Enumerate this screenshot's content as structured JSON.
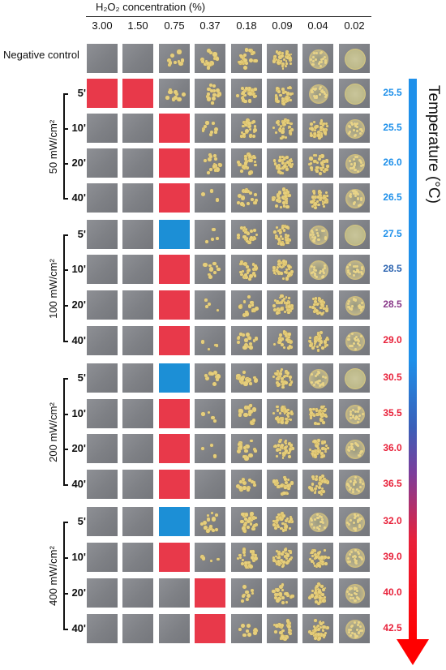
{
  "header": {
    "title": "H₂O₂ concentration (%)",
    "concentrations": [
      "3.00",
      "1.50",
      "0.75",
      "0.37",
      "0.18",
      "0.09",
      "0.04",
      "0.02"
    ]
  },
  "negative_control": {
    "label": "Negative control",
    "growth": [
      0,
      0,
      2,
      3,
      4,
      5,
      6,
      7
    ]
  },
  "axis": {
    "title": "Temperature (°C)"
  },
  "groups": [
    {
      "label": "50 mW/cm²",
      "rows": [
        {
          "time": "5'",
          "temp": "25.5",
          "temp_color": "#1e90ea",
          "growth": [
            0,
            0,
            2,
            3,
            4,
            5,
            6,
            7
          ],
          "overlay": {
            "red": [
              0,
              1
            ],
            "blue": []
          }
        },
        {
          "time": "10'",
          "temp": "25.5",
          "temp_color": "#1e90ea",
          "growth": [
            0,
            0,
            0,
            2,
            4,
            5,
            5,
            6
          ],
          "overlay": {
            "red": [
              2
            ],
            "blue": []
          }
        },
        {
          "time": "20'",
          "temp": "26.0",
          "temp_color": "#1e90ea",
          "growth": [
            0,
            0,
            0,
            3,
            4,
            5,
            5,
            6
          ],
          "overlay": {
            "red": [
              2
            ],
            "blue": []
          }
        },
        {
          "time": "40'",
          "temp": "26.5",
          "temp_color": "#1e90ea",
          "growth": [
            0,
            0,
            0,
            1,
            3,
            4,
            5,
            6
          ],
          "overlay": {
            "red": [
              2
            ],
            "blue": []
          }
        }
      ]
    },
    {
      "label": "100 mW/cm²",
      "rows": [
        {
          "time": "5'",
          "temp": "27.5",
          "temp_color": "#1e90ea",
          "growth": [
            0,
            0,
            0,
            1,
            4,
            5,
            6,
            7
          ],
          "overlay": {
            "red": [],
            "blue": [
              2
            ]
          }
        },
        {
          "time": "10'",
          "temp": "28.5",
          "temp_color": "#2b63b0",
          "growth": [
            0,
            0,
            0,
            2,
            4,
            5,
            6,
            6
          ],
          "overlay": {
            "red": [
              2
            ],
            "blue": []
          }
        },
        {
          "time": "20'",
          "temp": "28.5",
          "temp_color": "#8a3a8a",
          "growth": [
            0,
            0,
            0,
            1,
            3,
            5,
            5,
            6
          ],
          "overlay": {
            "red": [
              2
            ],
            "blue": []
          }
        },
        {
          "time": "40'",
          "temp": "29.0",
          "temp_color": "#e8213a",
          "growth": [
            0,
            0,
            0,
            1,
            3,
            4,
            5,
            6
          ],
          "overlay": {
            "red": [
              2
            ],
            "blue": []
          }
        }
      ]
    },
    {
      "label": "200 mW/cm²",
      "rows": [
        {
          "time": "5'",
          "temp": "30.5",
          "temp_color": "#e8213a",
          "growth": [
            0,
            0,
            0,
            2,
            3,
            5,
            6,
            7
          ],
          "overlay": {
            "red": [],
            "blue": [
              2
            ]
          }
        },
        {
          "time": "10'",
          "temp": "35.5",
          "temp_color": "#e8213a",
          "growth": [
            0,
            0,
            0,
            1,
            3,
            5,
            5,
            6
          ],
          "overlay": {
            "red": [
              2
            ],
            "blue": []
          }
        },
        {
          "time": "20'",
          "temp": "36.0",
          "temp_color": "#e8213a",
          "growth": [
            0,
            0,
            0,
            1,
            3,
            5,
            5,
            6
          ],
          "overlay": {
            "red": [
              2
            ],
            "blue": []
          }
        },
        {
          "time": "40'",
          "temp": "36.5",
          "temp_color": "#e8213a",
          "growth": [
            0,
            0,
            0,
            0,
            3,
            4,
            5,
            6
          ],
          "overlay": {
            "red": [
              2
            ],
            "blue": []
          }
        }
      ]
    },
    {
      "label": "400 mW/cm²",
      "rows": [
        {
          "time": "5'",
          "temp": "32.0",
          "temp_color": "#e8213a",
          "growth": [
            0,
            0,
            0,
            3,
            4,
            5,
            6,
            6
          ],
          "overlay": {
            "red": [],
            "blue": [
              2
            ]
          }
        },
        {
          "time": "10'",
          "temp": "39.0",
          "temp_color": "#e8213a",
          "growth": [
            0,
            0,
            0,
            1,
            4,
            5,
            5,
            6
          ],
          "overlay": {
            "red": [
              2
            ],
            "blue": []
          }
        },
        {
          "time": "20'",
          "temp": "40.0",
          "temp_color": "#e8213a",
          "growth": [
            0,
            0,
            0,
            0,
            2,
            4,
            5,
            6
          ],
          "overlay": {
            "red": [
              3
            ],
            "blue": []
          }
        },
        {
          "time": "40'",
          "temp": "42.5",
          "temp_color": "#e8213a",
          "growth": [
            0,
            0,
            0,
            0,
            2,
            4,
            5,
            6
          ],
          "overlay": {
            "red": [
              3
            ],
            "blue": []
          }
        }
      ]
    }
  ],
  "colors": {
    "overlay_red": "#e8394a",
    "overlay_blue": "#1c8fd6",
    "colony": "#e3c873",
    "arrow_top": "#1e90ea",
    "arrow_bottom": "#ff0000"
  }
}
